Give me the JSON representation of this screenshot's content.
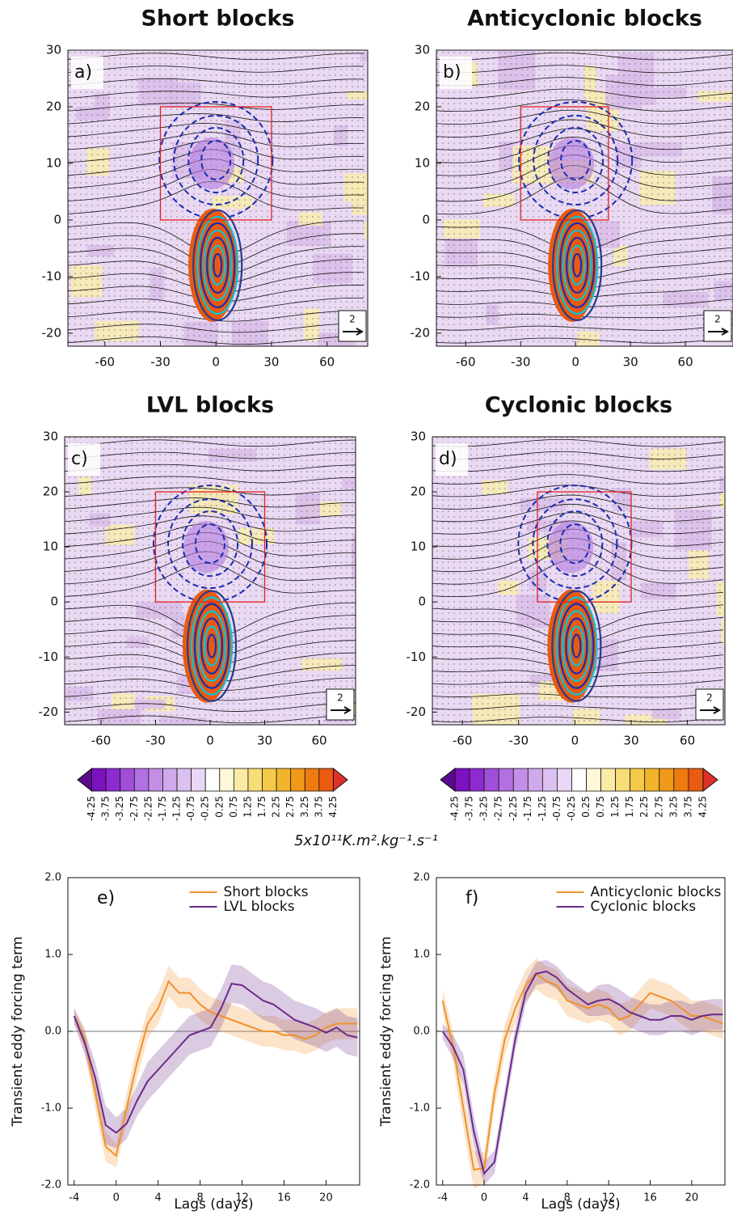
{
  "chart_data": [
    {
      "type": "map",
      "label": "a)",
      "title": "Short blocks",
      "xlim": [
        -80,
        82
      ],
      "ylim": [
        -22.3,
        30
      ],
      "xticks": [
        -60,
        -30,
        0,
        30,
        60
      ],
      "yticks": [
        -20,
        -10,
        0,
        10,
        20,
        30
      ],
      "box": {
        "x": [
          -30,
          30
        ],
        "y": [
          0,
          20
        ]
      },
      "reference_vector": 2
    },
    {
      "type": "map",
      "label": "b)",
      "title": "Anticyclonic blocks",
      "xlim": [
        -76,
        86
      ],
      "ylim": [
        -22.3,
        30
      ],
      "xticks": [
        -60,
        -30,
        0,
        30,
        60
      ],
      "yticks": [
        -20,
        -10,
        0,
        10,
        20,
        30
      ],
      "box": {
        "x": [
          -30,
          18
        ],
        "y": [
          0,
          20
        ]
      },
      "reference_vector": 2
    },
    {
      "type": "map",
      "label": "c)",
      "title": "LVL blocks",
      "xlim": [
        -80,
        80
      ],
      "ylim": [
        -22.3,
        30
      ],
      "xticks": [
        -60,
        -30,
        0,
        30,
        60
      ],
      "yticks": [
        -20,
        -10,
        0,
        10,
        20,
        30
      ],
      "box": {
        "x": [
          -30,
          30
        ],
        "y": [
          0,
          20
        ]
      },
      "reference_vector": 2
    },
    {
      "type": "map",
      "label": "d)",
      "title": "Cyclonic blocks",
      "xlim": [
        -76,
        80
      ],
      "ylim": [
        -22.3,
        30
      ],
      "xticks": [
        -60,
        -30,
        0,
        30,
        60
      ],
      "yticks": [
        -20,
        -10,
        0,
        10,
        20,
        30
      ],
      "box": {
        "x": [
          -20,
          30
        ],
        "y": [
          0,
          20
        ]
      },
      "reference_vector": 2
    },
    {
      "type": "line",
      "label": "e)",
      "xlabel": "Lags (days)",
      "ylabel": "Transient eddy forcing term",
      "x": [
        -4,
        -3,
        -2,
        -1,
        0,
        1,
        2,
        3,
        4,
        5,
        6,
        7,
        8,
        9,
        10,
        11,
        12,
        13,
        14,
        15,
        16,
        17,
        18,
        19,
        20,
        21,
        22,
        23
      ],
      "xlim": [
        -4.6,
        23.2
      ],
      "ylim": [
        -2,
        2
      ],
      "xticks": [
        -4,
        0,
        4,
        8,
        12,
        16,
        20
      ],
      "yticks": [
        {
          "value": -2,
          "label": "-2.0"
        },
        {
          "value": -1,
          "label": "-1.0"
        },
        {
          "value": 0,
          "label": "0.0"
        },
        {
          "value": 1,
          "label": "1.0"
        },
        {
          "value": 2,
          "label": "2.0"
        }
      ],
      "series": [
        {
          "name": "Short blocks",
          "color": "#f0922a",
          "values": [
            0.2,
            -0.1,
            -0.8,
            -1.5,
            -1.62,
            -1.0,
            -0.4,
            0.1,
            0.3,
            0.65,
            0.5,
            0.5,
            0.35,
            0.25,
            0.2,
            0.15,
            0.1,
            0.05,
            0.0,
            0.0,
            -0.05,
            -0.05,
            -0.1,
            -0.05,
            0.05,
            0.1,
            0.1,
            0.1
          ],
          "spread": [
            0.1,
            0.15,
            0.2,
            0.2,
            0.15,
            0.2,
            0.2,
            0.2,
            0.2,
            0.2,
            0.2,
            0.2,
            0.2,
            0.2,
            0.2,
            0.2,
            0.2,
            0.2,
            0.2,
            0.2,
            0.2,
            0.2,
            0.2,
            0.2,
            0.2,
            0.2,
            0.2,
            0.2
          ]
        },
        {
          "name": "LVL blocks",
          "color": "#6a2a8a",
          "values": [
            0.2,
            -0.15,
            -0.6,
            -1.22,
            -1.32,
            -1.2,
            -0.9,
            -0.65,
            -0.5,
            -0.35,
            -0.2,
            -0.05,
            0.0,
            0.05,
            0.3,
            0.62,
            0.6,
            0.5,
            0.4,
            0.35,
            0.25,
            0.15,
            0.1,
            0.05,
            -0.02,
            0.05,
            -0.05,
            -0.08
          ],
          "spread": [
            0.1,
            0.15,
            0.2,
            0.25,
            0.2,
            0.2,
            0.2,
            0.25,
            0.25,
            0.25,
            0.25,
            0.25,
            0.25,
            0.25,
            0.25,
            0.25,
            0.25,
            0.25,
            0.25,
            0.25,
            0.25,
            0.25,
            0.25,
            0.25,
            0.25,
            0.25,
            0.25,
            0.25
          ]
        }
      ]
    },
    {
      "type": "line",
      "label": "f)",
      "xlabel": "Lags (days)",
      "ylabel": "Transient eddy forcing term",
      "x": [
        -4,
        -3,
        -2,
        -1,
        0,
        1,
        2,
        3,
        4,
        5,
        6,
        7,
        8,
        9,
        10,
        11,
        12,
        13,
        14,
        15,
        16,
        17,
        18,
        19,
        20,
        21,
        22,
        23
      ],
      "xlim": [
        -4.6,
        23.2
      ],
      "ylim": [
        -2,
        2
      ],
      "xticks": [
        -4,
        0,
        4,
        8,
        12,
        16,
        20
      ],
      "yticks": [
        {
          "value": -2,
          "label": "-2.0"
        },
        {
          "value": -1,
          "label": "-1.0"
        },
        {
          "value": 0,
          "label": "0.0"
        },
        {
          "value": 1,
          "label": "1.0"
        },
        {
          "value": 2,
          "label": "2.0"
        }
      ],
      "series": [
        {
          "name": "Anticyclonic blocks",
          "color": "#f0922a",
          "values": [
            0.4,
            -0.2,
            -1.0,
            -1.8,
            -1.78,
            -0.8,
            -0.1,
            0.3,
            0.6,
            0.75,
            0.65,
            0.6,
            0.4,
            0.35,
            0.3,
            0.35,
            0.3,
            0.15,
            0.2,
            0.35,
            0.5,
            0.45,
            0.4,
            0.3,
            0.2,
            0.2,
            0.15,
            0.1
          ],
          "spread": [
            0.15,
            0.2,
            0.25,
            0.25,
            0.2,
            0.2,
            0.2,
            0.2,
            0.2,
            0.2,
            0.2,
            0.2,
            0.2,
            0.2,
            0.2,
            0.2,
            0.2,
            0.2,
            0.2,
            0.2,
            0.2,
            0.2,
            0.2,
            0.2,
            0.2,
            0.2,
            0.2,
            0.2
          ]
        },
        {
          "name": "Cyclonic blocks",
          "color": "#6a2a8a",
          "values": [
            0.0,
            -0.2,
            -0.5,
            -1.3,
            -1.85,
            -1.7,
            -0.9,
            -0.1,
            0.5,
            0.75,
            0.78,
            0.7,
            0.55,
            0.45,
            0.35,
            0.4,
            0.42,
            0.35,
            0.25,
            0.2,
            0.15,
            0.15,
            0.2,
            0.2,
            0.15,
            0.2,
            0.22,
            0.22
          ],
          "spread": [
            0.1,
            0.15,
            0.2,
            0.2,
            0.15,
            0.15,
            0.15,
            0.15,
            0.15,
            0.15,
            0.15,
            0.15,
            0.15,
            0.15,
            0.15,
            0.2,
            0.2,
            0.2,
            0.2,
            0.2,
            0.2,
            0.2,
            0.2,
            0.2,
            0.2,
            0.2,
            0.2,
            0.2
          ]
        }
      ]
    }
  ],
  "colorbar": {
    "levels": [
      -4.25,
      -3.75,
      -3.25,
      -2.75,
      -2.25,
      -1.75,
      -1.25,
      -0.75,
      -0.25,
      0.25,
      0.75,
      1.25,
      1.75,
      2.25,
      2.75,
      3.25,
      3.75,
      4.25
    ],
    "colors": [
      "#5a0a8a",
      "#7a12c0",
      "#8e2ad0",
      "#a04fd8",
      "#b370e0",
      "#c38fe6",
      "#d0a8ec",
      "#dcc0f0",
      "#e8d8f5",
      "#ffffff",
      "#fff8d8",
      "#fbeaa6",
      "#f8dc78",
      "#f5ca4a",
      "#f2b52a",
      "#f09a1a",
      "#ee7a10",
      "#ea5a10",
      "#e0302a"
    ],
    "unit_label": "5x10¹¹K.m².kg⁻¹.s⁻¹"
  }
}
